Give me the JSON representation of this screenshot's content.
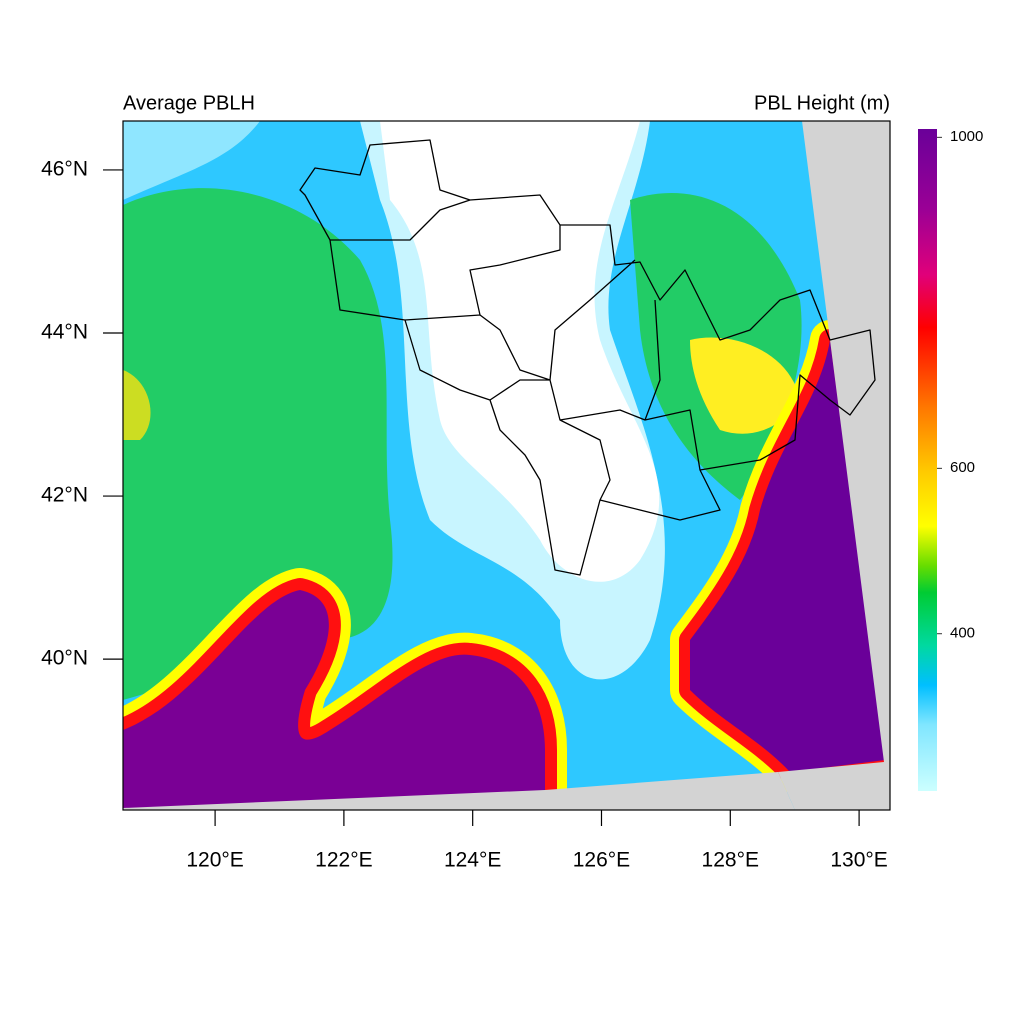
{
  "map": {
    "title_left": "Average PBLH",
    "title_right": "PBL Height (m)",
    "xlim": [
      118.57,
      130.48
    ],
    "ylim": [
      38.15,
      46.6
    ],
    "xticks": [
      {
        "value": 120,
        "label": "120°E"
      },
      {
        "value": 122,
        "label": "122°E"
      },
      {
        "value": 124,
        "label": "124°E"
      },
      {
        "value": 126,
        "label": "126°E"
      },
      {
        "value": 128,
        "label": "128°E"
      },
      {
        "value": 130,
        "label": "130°E"
      }
    ],
    "yticks": [
      {
        "value": 40,
        "label": "40°N"
      },
      {
        "value": 42,
        "label": "42°N"
      },
      {
        "value": 44,
        "label": "44°N"
      },
      {
        "value": 46,
        "label": "46°N"
      }
    ],
    "colorbar": {
      "lim": [
        210,
        1010
      ],
      "ticks": [
        400,
        600,
        1000
      ]
    }
  }
}
